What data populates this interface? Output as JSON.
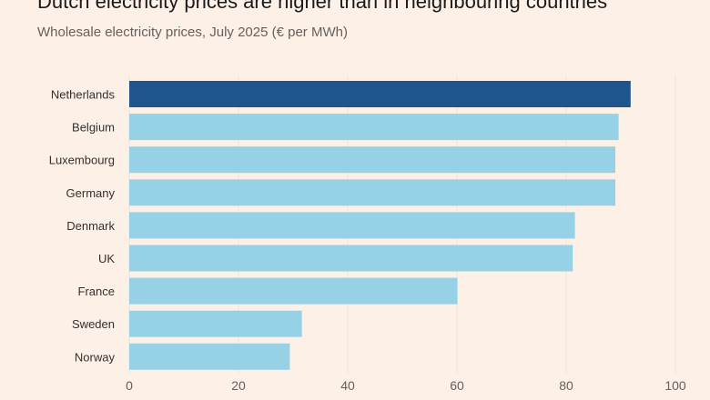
{
  "chart_data": {
    "type": "bar",
    "orientation": "horizontal",
    "title": "Dutch electricity prices are higher than in neighbouring countries",
    "subtitle": "Wholesale electricity prices, July 2025 (€ per MWh)",
    "xlabel": "",
    "ylabel": "",
    "categories": [
      "Netherlands",
      "Belgium",
      "Luxembourg",
      "Germany",
      "Denmark",
      "UK",
      "France",
      "Sweden",
      "Norway"
    ],
    "values": [
      91.8,
      89.6,
      89.0,
      89.0,
      81.6,
      81.2,
      60.1,
      31.6,
      29.4
    ],
    "xlim": [
      0,
      100
    ],
    "xticks": [
      "0",
      "20",
      "40",
      "60",
      "80",
      "100"
    ],
    "grid": true,
    "colors": {
      "highlight": "#1f558c",
      "default": "#96d1e6",
      "background": "#fdf0e7",
      "grid": "#ece3dc"
    },
    "highlight_category": "Netherlands"
  }
}
